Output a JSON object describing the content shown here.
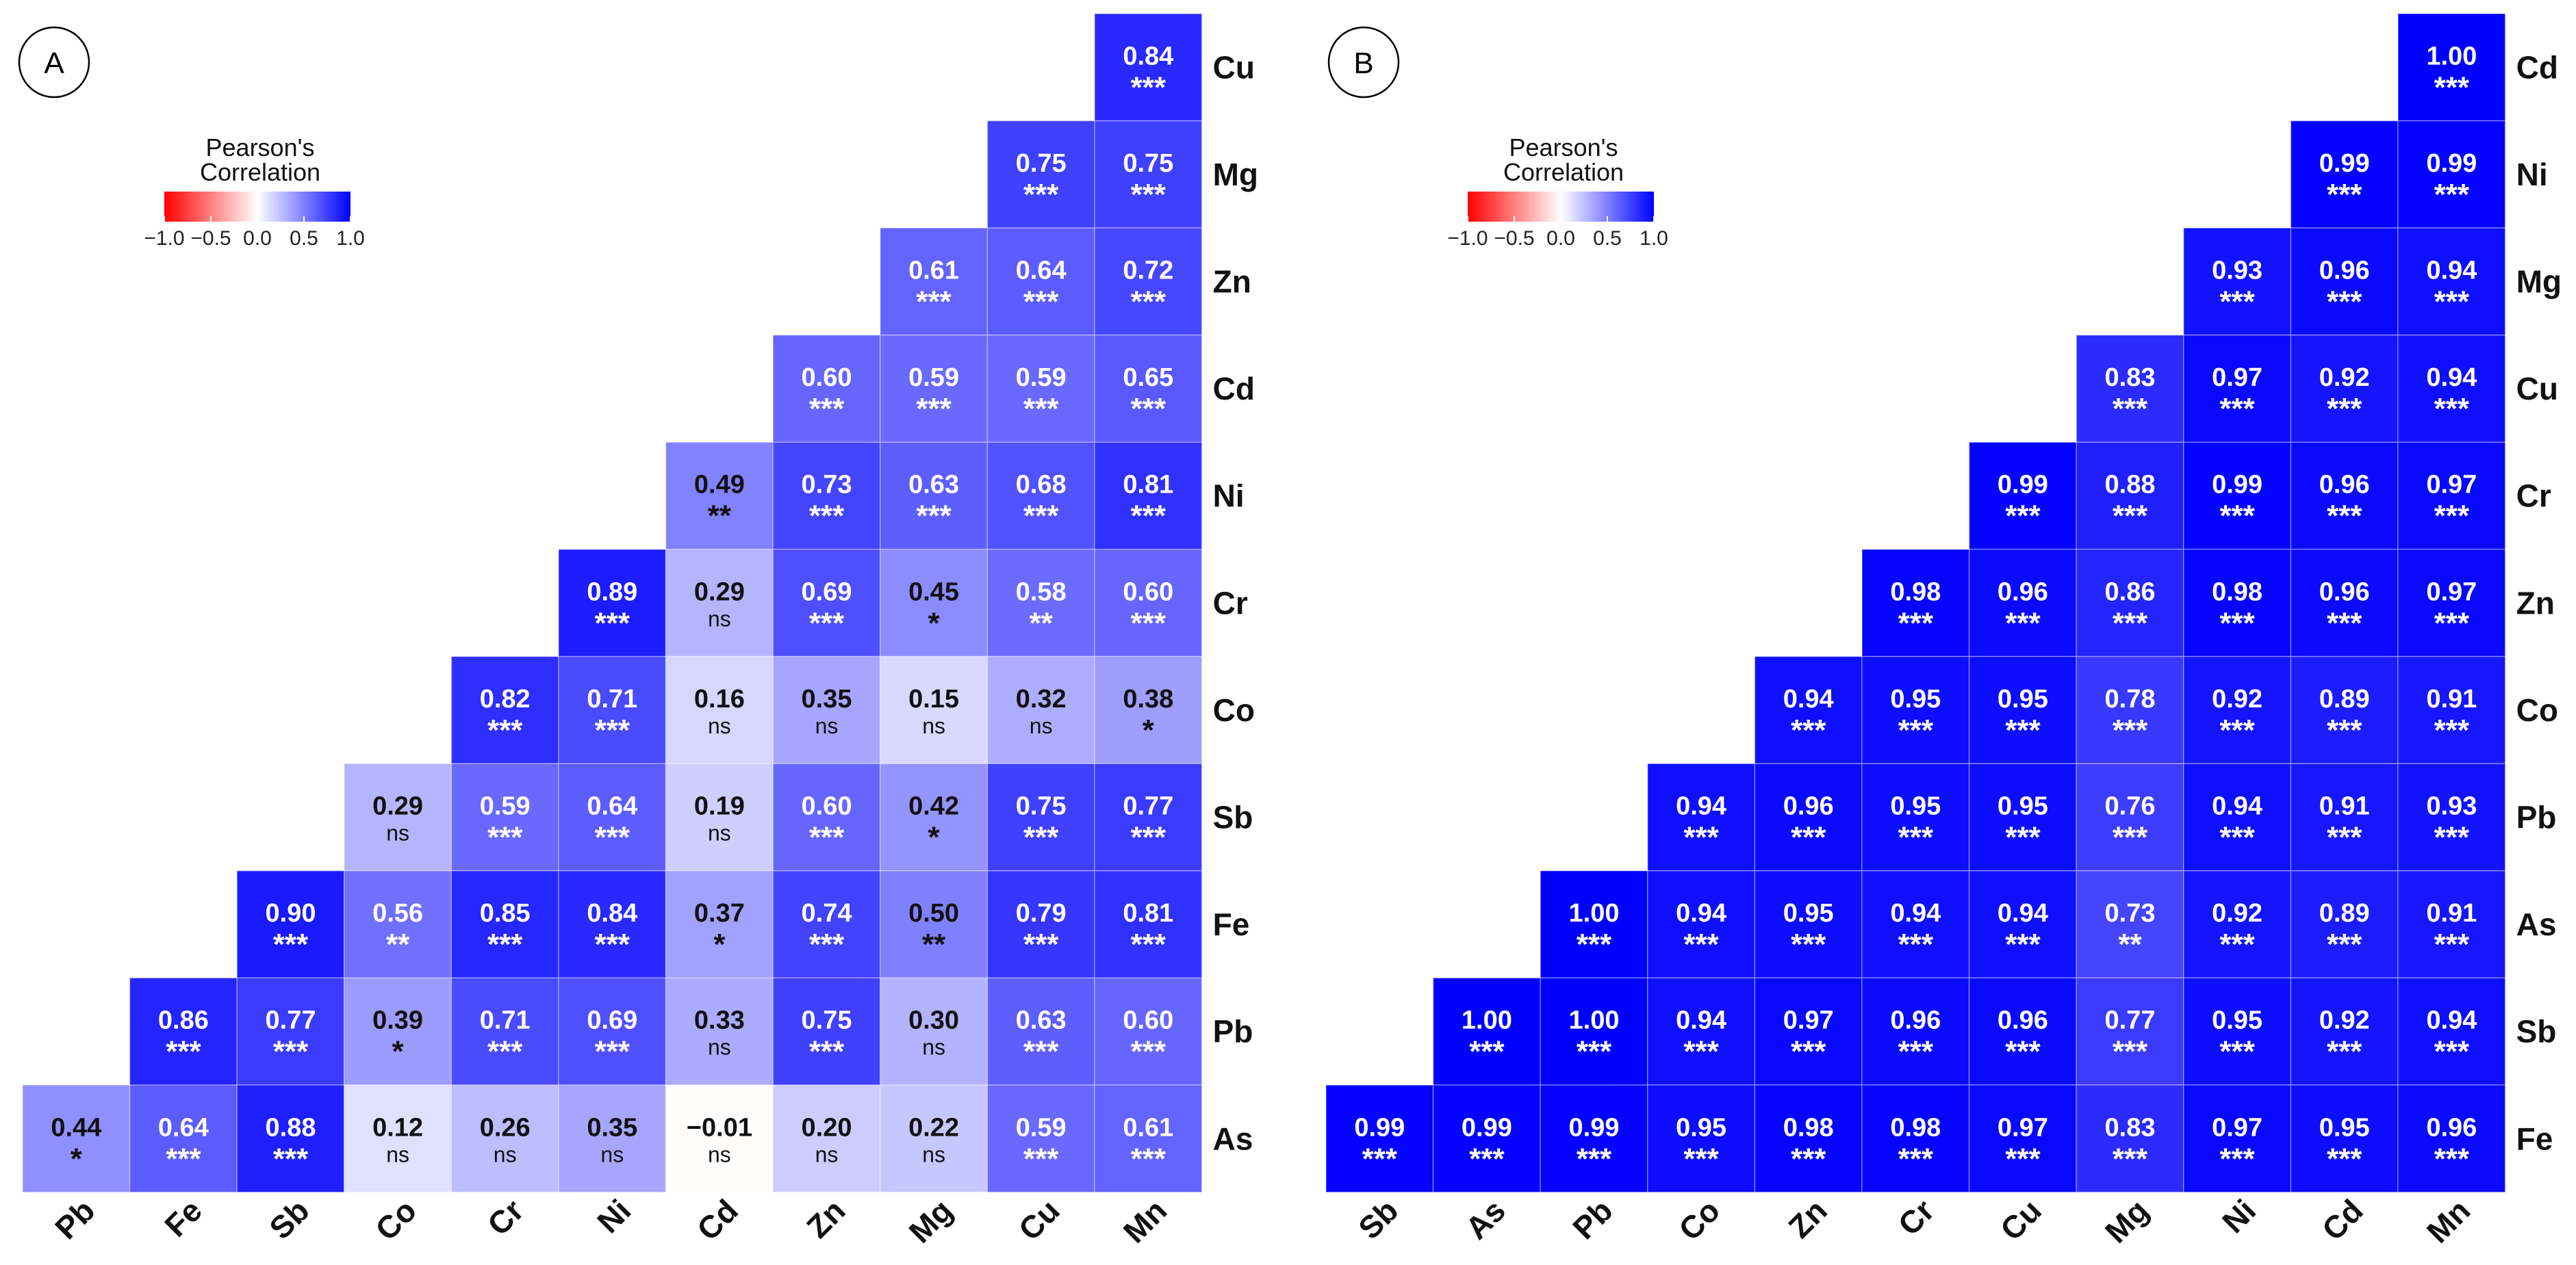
{
  "chart_data": [
    {
      "type": "heatmap",
      "panel_label": "A",
      "legend": {
        "title_line1": "Pearson's",
        "title_line2": "Correlation",
        "ticks": [
          "−1.0",
          "−0.5",
          "0.0",
          "0.5",
          "1.0"
        ],
        "colors": {
          "low": "#FF0000",
          "mid": "#FFFFFF",
          "high": "#0000FF"
        }
      },
      "x_labels": [
        "Pb",
        "Fe",
        "Sb",
        "Co",
        "Cr",
        "Ni",
        "Cd",
        "Zn",
        "Mg",
        "Cu",
        "Mn"
      ],
      "y_labels": [
        "Cu",
        "Mg",
        "Zn",
        "Cd",
        "Ni",
        "Cr",
        "Co",
        "Sb",
        "Fe",
        "Pb",
        "As"
      ],
      "values": [
        [
          null,
          null,
          null,
          null,
          null,
          null,
          null,
          null,
          null,
          null,
          0.84
        ],
        [
          null,
          null,
          null,
          null,
          null,
          null,
          null,
          null,
          null,
          0.75,
          0.75
        ],
        [
          null,
          null,
          null,
          null,
          null,
          null,
          null,
          null,
          0.61,
          0.64,
          0.72
        ],
        [
          null,
          null,
          null,
          null,
          null,
          null,
          null,
          0.6,
          0.59,
          0.59,
          0.65
        ],
        [
          null,
          null,
          null,
          null,
          null,
          null,
          0.49,
          0.73,
          0.63,
          0.68,
          0.81
        ],
        [
          null,
          null,
          null,
          null,
          null,
          0.89,
          0.29,
          0.69,
          0.45,
          0.58,
          0.6
        ],
        [
          null,
          null,
          null,
          null,
          0.82,
          0.71,
          0.16,
          0.35,
          0.15,
          0.32,
          0.38
        ],
        [
          null,
          null,
          null,
          0.29,
          0.59,
          0.64,
          0.19,
          0.6,
          0.42,
          0.75,
          0.77
        ],
        [
          null,
          null,
          0.9,
          0.56,
          0.85,
          0.84,
          0.37,
          0.74,
          0.5,
          0.79,
          0.81
        ],
        [
          null,
          0.86,
          0.77,
          0.39,
          0.71,
          0.69,
          0.33,
          0.75,
          0.3,
          0.63,
          0.6
        ],
        [
          0.44,
          0.64,
          0.88,
          0.12,
          0.26,
          0.35,
          -0.01,
          0.2,
          0.22,
          0.59,
          0.61
        ]
      ],
      "significance": [
        [
          null,
          null,
          null,
          null,
          null,
          null,
          null,
          null,
          null,
          null,
          "***"
        ],
        [
          null,
          null,
          null,
          null,
          null,
          null,
          null,
          null,
          null,
          "***",
          "***"
        ],
        [
          null,
          null,
          null,
          null,
          null,
          null,
          null,
          null,
          "***",
          "***",
          "***"
        ],
        [
          null,
          null,
          null,
          null,
          null,
          null,
          null,
          "***",
          "***",
          "***",
          "***"
        ],
        [
          null,
          null,
          null,
          null,
          null,
          null,
          "**",
          "***",
          "***",
          "***",
          "***"
        ],
        [
          null,
          null,
          null,
          null,
          null,
          "***",
          "ns",
          "***",
          "*",
          "**",
          "***"
        ],
        [
          null,
          null,
          null,
          null,
          "***",
          "***",
          "ns",
          "ns",
          "ns",
          "ns",
          "*"
        ],
        [
          null,
          null,
          null,
          "ns",
          "***",
          "***",
          "ns",
          "***",
          "*",
          "***",
          "***"
        ],
        [
          null,
          null,
          "***",
          "**",
          "***",
          "***",
          "*",
          "***",
          "**",
          "***",
          "***"
        ],
        [
          null,
          "***",
          "***",
          "*",
          "***",
          "***",
          "ns",
          "***",
          "ns",
          "***",
          "***"
        ],
        [
          "*",
          "***",
          "***",
          "ns",
          "ns",
          "ns",
          "ns",
          "ns",
          "ns",
          "***",
          "***"
        ]
      ]
    },
    {
      "type": "heatmap",
      "panel_label": "B",
      "legend": {
        "title_line1": "Pearson's",
        "title_line2": "Correlation",
        "ticks": [
          "−1.0",
          "−0.5",
          "0.0",
          "0.5",
          "1.0"
        ],
        "colors": {
          "low": "#FF0000",
          "mid": "#FFFFFF",
          "high": "#0000FF"
        }
      },
      "x_labels": [
        "Sb",
        "As",
        "Pb",
        "Co",
        "Zn",
        "Cr",
        "Cu",
        "Mg",
        "Ni",
        "Cd",
        "Mn"
      ],
      "y_labels": [
        "Cd",
        "Ni",
        "Mg",
        "Cu",
        "Cr",
        "Zn",
        "Co",
        "Pb",
        "As",
        "Sb",
        "Fe"
      ],
      "values": [
        [
          null,
          null,
          null,
          null,
          null,
          null,
          null,
          null,
          null,
          null,
          1.0
        ],
        [
          null,
          null,
          null,
          null,
          null,
          null,
          null,
          null,
          null,
          0.99,
          0.99
        ],
        [
          null,
          null,
          null,
          null,
          null,
          null,
          null,
          null,
          0.93,
          0.96,
          0.94
        ],
        [
          null,
          null,
          null,
          null,
          null,
          null,
          null,
          0.83,
          0.97,
          0.92,
          0.94
        ],
        [
          null,
          null,
          null,
          null,
          null,
          null,
          0.99,
          0.88,
          0.99,
          0.96,
          0.97
        ],
        [
          null,
          null,
          null,
          null,
          null,
          0.98,
          0.96,
          0.86,
          0.98,
          0.96,
          0.97
        ],
        [
          null,
          null,
          null,
          null,
          0.94,
          0.95,
          0.95,
          0.78,
          0.92,
          0.89,
          0.91
        ],
        [
          null,
          null,
          null,
          0.94,
          0.96,
          0.95,
          0.95,
          0.76,
          0.94,
          0.91,
          0.93
        ],
        [
          null,
          null,
          1.0,
          0.94,
          0.95,
          0.94,
          0.94,
          0.73,
          0.92,
          0.89,
          0.91
        ],
        [
          null,
          1.0,
          1.0,
          0.94,
          0.97,
          0.96,
          0.96,
          0.77,
          0.95,
          0.92,
          0.94
        ],
        [
          0.99,
          0.99,
          0.99,
          0.95,
          0.98,
          0.98,
          0.97,
          0.83,
          0.97,
          0.95,
          0.96
        ]
      ],
      "significance": [
        [
          null,
          null,
          null,
          null,
          null,
          null,
          null,
          null,
          null,
          null,
          "***"
        ],
        [
          null,
          null,
          null,
          null,
          null,
          null,
          null,
          null,
          null,
          "***",
          "***"
        ],
        [
          null,
          null,
          null,
          null,
          null,
          null,
          null,
          null,
          "***",
          "***",
          "***"
        ],
        [
          null,
          null,
          null,
          null,
          null,
          null,
          null,
          "***",
          "***",
          "***",
          "***"
        ],
        [
          null,
          null,
          null,
          null,
          null,
          null,
          "***",
          "***",
          "***",
          "***",
          "***"
        ],
        [
          null,
          null,
          null,
          null,
          null,
          "***",
          "***",
          "***",
          "***",
          "***",
          "***"
        ],
        [
          null,
          null,
          null,
          null,
          "***",
          "***",
          "***",
          "***",
          "***",
          "***",
          "***"
        ],
        [
          null,
          null,
          null,
          "***",
          "***",
          "***",
          "***",
          "***",
          "***",
          "***",
          "***"
        ],
        [
          null,
          null,
          "***",
          "***",
          "***",
          "***",
          "***",
          "**",
          "***",
          "***",
          "***"
        ],
        [
          null,
          "***",
          "***",
          "***",
          "***",
          "***",
          "***",
          "***",
          "***",
          "***",
          "***"
        ],
        [
          "***",
          "***",
          "***",
          "***",
          "***",
          "***",
          "***",
          "***",
          "***",
          "***",
          "***"
        ]
      ]
    }
  ]
}
